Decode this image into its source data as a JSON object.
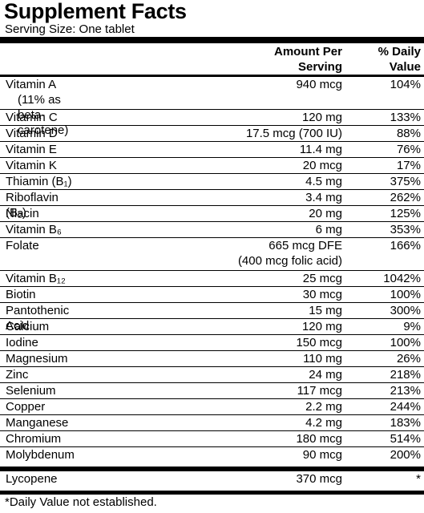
{
  "header": {
    "title": "Supplement Facts",
    "serving_size": "Serving Size: One tablet"
  },
  "table": {
    "columns": {
      "amount": [
        "Amount Per",
        "Serving"
      ],
      "daily_value": [
        "% Daily",
        "Value"
      ]
    },
    "rows": [
      {
        "name": "Vitamin A",
        "note": "(11% as beta-carotene)",
        "amount": "940 mcg",
        "daily_value": "104%"
      },
      {
        "name": "Vitamin C",
        "amount": "120 mg",
        "daily_value": "133%"
      },
      {
        "name": "Vitamin D",
        "amount": "17.5 mcg (700 IU)",
        "daily_value": "88%"
      },
      {
        "name": "Vitamin E",
        "amount": "11.4 mg",
        "daily_value": "76%"
      },
      {
        "name": "Vitamin K",
        "amount": "20 mcg",
        "daily_value": "17%"
      },
      {
        "name": "Thiamin (B₁)",
        "amount": "4.5 mg",
        "daily_value": "375%"
      },
      {
        "name": "Riboflavin (B₂)",
        "amount": "3.4 mg",
        "daily_value": "262%"
      },
      {
        "name": "Niacin",
        "amount": "20 mg",
        "daily_value": "125%"
      },
      {
        "name": "Vitamin B₆",
        "amount": "6 mg",
        "daily_value": "353%"
      },
      {
        "name": "Folate",
        "amount": "665 mcg DFE",
        "amount_note": "(400 mcg folic acid)",
        "daily_value": "166%"
      },
      {
        "name": "Vitamin B₁₂",
        "amount": "25 mcg",
        "daily_value": "1042%"
      },
      {
        "name": "Biotin",
        "amount": "30 mcg",
        "daily_value": "100%"
      },
      {
        "name": "Pantothenic Acid",
        "amount": "15 mg",
        "daily_value": "300%"
      },
      {
        "name": "Calcium",
        "amount": "120 mg",
        "daily_value": "9%"
      },
      {
        "name": "Iodine",
        "amount": "150 mcg",
        "daily_value": "100%"
      },
      {
        "name": "Magnesium",
        "amount": "110 mg",
        "daily_value": "26%"
      },
      {
        "name": "Zinc",
        "amount": "24 mg",
        "daily_value": "218%"
      },
      {
        "name": "Selenium",
        "amount": "117 mcg",
        "daily_value": "213%"
      },
      {
        "name": "Copper",
        "amount": "2.2 mg",
        "daily_value": "244%"
      },
      {
        "name": "Manganese",
        "amount": "4.2 mg",
        "daily_value": "183%"
      },
      {
        "name": "Chromium",
        "amount": "180 mcg",
        "daily_value": "514%"
      },
      {
        "name": "Molybdenum",
        "amount": "90 mcg",
        "daily_value": "200%"
      }
    ],
    "extra_rows": [
      {
        "name": "Lycopene",
        "amount": "370 mcg",
        "daily_value": "*"
      }
    ]
  },
  "footnote": "*Daily Value not established."
}
